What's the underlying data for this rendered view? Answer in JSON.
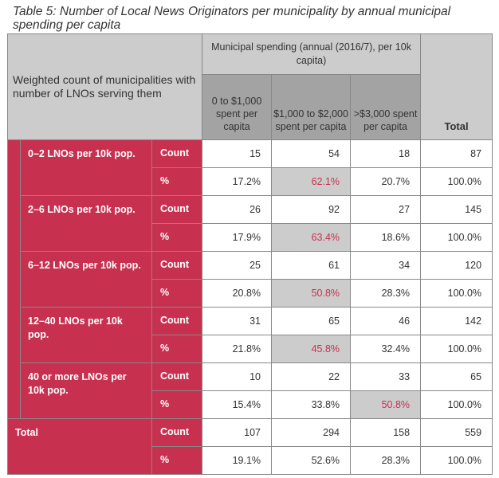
{
  "caption": "Table 5: Number of Local News Originators per municipality by annual municipal spending per capita",
  "header": {
    "stub": "Weighted count of municipalities with number of LNOs serving them",
    "span": "Municipal spending (annual (2016/7), per 10k capita)",
    "columns": [
      "0 to $1,000 spent per capita",
      "$1,000 to $2,000 spent per capita",
      ">$3,000 spent per capita"
    ],
    "total": "Total"
  },
  "row_labels": {
    "count": "Count",
    "pct": "%"
  },
  "groups": [
    {
      "label": "0–2 LNOs per 10k pop.",
      "count": [
        "15",
        "54",
        "18",
        "87"
      ],
      "pct": [
        "17.2%",
        "62.1%",
        "20.7%",
        "100.0%"
      ],
      "highlight": 1
    },
    {
      "label": "2–6 LNOs per 10k pop.",
      "count": [
        "26",
        "92",
        "27",
        "145"
      ],
      "pct": [
        "17.9%",
        "63.4%",
        "18.6%",
        "100.0%"
      ],
      "highlight": 1
    },
    {
      "label": "6–12 LNOs per 10k pop.",
      "count": [
        "25",
        "61",
        "34",
        "120"
      ],
      "pct": [
        "20.8%",
        "50.8%",
        "28.3%",
        "100.0%"
      ],
      "highlight": 1
    },
    {
      "label": "12–40 LNOs per 10k pop.",
      "count": [
        "31",
        "65",
        "46",
        "142"
      ],
      "pct": [
        "21.8%",
        "45.8%",
        "32.4%",
        "100.0%"
      ],
      "highlight": 1
    },
    {
      "label": "40 or more LNOs per 10k pop.",
      "count": [
        "10",
        "22",
        "33",
        "65"
      ],
      "pct": [
        "15.4%",
        "33.8%",
        "50.8%",
        "100.0%"
      ],
      "highlight": 2
    }
  ],
  "total_row": {
    "label": "Total",
    "count": [
      "107",
      "294",
      "158",
      "559"
    ],
    "pct": [
      "19.1%",
      "52.6%",
      "28.3%",
      "100.0%"
    ]
  },
  "colors": {
    "accent": "#c8304f",
    "header_light": "#cccccc",
    "header_dark": "#a3a3a3"
  }
}
